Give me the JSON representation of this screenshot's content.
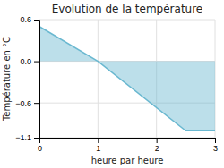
{
  "chart_data": {
    "type": "area",
    "title": "Evolution de la température",
    "xlabel": "heure par heure",
    "ylabel": "Température en °C",
    "x": [
      0,
      1,
      2.5,
      3
    ],
    "values": [
      0.5,
      0.0,
      -1.0,
      -1.0
    ],
    "color": "#6ab8d0",
    "xlim": [
      0,
      3
    ],
    "ylim": [
      -1.1,
      0.6
    ],
    "xticks": [
      0,
      1,
      2,
      3
    ],
    "yticks": [
      -1.1,
      -0.6,
      {
        "value": 0.0,
        "label": "0.0"
      },
      0.6
    ],
    "grid": true
  }
}
